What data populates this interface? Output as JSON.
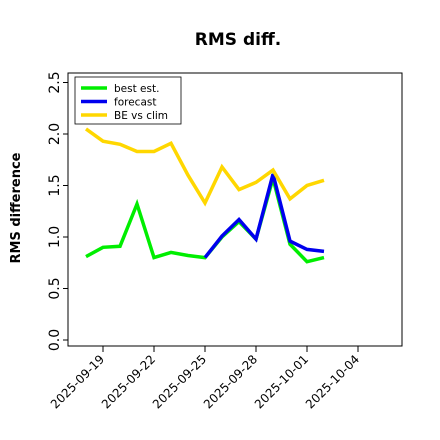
{
  "chart_data": {
    "type": "line",
    "title": "RMS diff.",
    "xlabel": "",
    "ylabel": "RMS difference",
    "ylim": [
      0.0,
      2.5
    ],
    "yticks": [
      0.0,
      0.5,
      1.0,
      1.5,
      2.0,
      2.5
    ],
    "ytick_labels": [
      "0.0",
      "0.5",
      "1.0",
      "1.5",
      "2.0",
      "2.5"
    ],
    "xlim": [
      "2025-09-17",
      "2025-10-06"
    ],
    "xticks": [
      "2025-09-19",
      "2025-09-22",
      "2025-09-25",
      "2025-09-28",
      "2025-10-01",
      "2025-10-04"
    ],
    "xtick_labels": [
      "2025-09-19",
      "2025-09-22",
      "2025-09-25",
      "2025-09-28",
      "2025-10-01",
      "2025-10-04"
    ],
    "xtick_colors": [
      "#000000",
      "#000000",
      "#228B22",
      "#000000",
      "#000000",
      "#000000"
    ],
    "grid": false,
    "legend_position": "top-left",
    "series": [
      {
        "name": "best est.",
        "color": "#00ee00",
        "x": [
          "2025-09-18",
          "2025-09-19",
          "2025-09-20",
          "2025-09-21",
          "2025-09-22",
          "2025-09-23",
          "2025-09-24",
          "2025-09-25",
          "2025-09-26",
          "2025-09-27",
          "2025-09-28",
          "2025-09-29",
          "2025-09-30",
          "2025-10-01",
          "2025-10-02"
        ],
        "values": [
          0.81,
          0.9,
          0.91,
          1.32,
          0.8,
          0.85,
          0.82,
          0.8,
          1.0,
          1.15,
          0.98,
          1.57,
          0.93,
          0.76,
          0.8
        ]
      },
      {
        "name": "forecast",
        "color": "#0000ee",
        "x": [
          "2025-09-25",
          "2025-09-26",
          "2025-09-27",
          "2025-09-28",
          "2025-09-29",
          "2025-09-30",
          "2025-10-01",
          "2025-10-02"
        ],
        "values": [
          0.8,
          1.01,
          1.17,
          0.98,
          1.61,
          0.96,
          0.88,
          0.86
        ]
      },
      {
        "name": "BE vs clim",
        "color": "#ffd700",
        "x": [
          "2025-09-18",
          "2025-09-19",
          "2025-09-20",
          "2025-09-21",
          "2025-09-22",
          "2025-09-23",
          "2025-09-24",
          "2025-09-25",
          "2025-09-26",
          "2025-09-27",
          "2025-09-28",
          "2025-09-29",
          "2025-09-30",
          "2025-10-01",
          "2025-10-02"
        ],
        "values": [
          2.05,
          1.93,
          1.9,
          1.83,
          1.83,
          1.91,
          1.6,
          1.33,
          1.68,
          1.46,
          1.53,
          1.65,
          1.37,
          1.5,
          1.55
        ]
      }
    ]
  }
}
